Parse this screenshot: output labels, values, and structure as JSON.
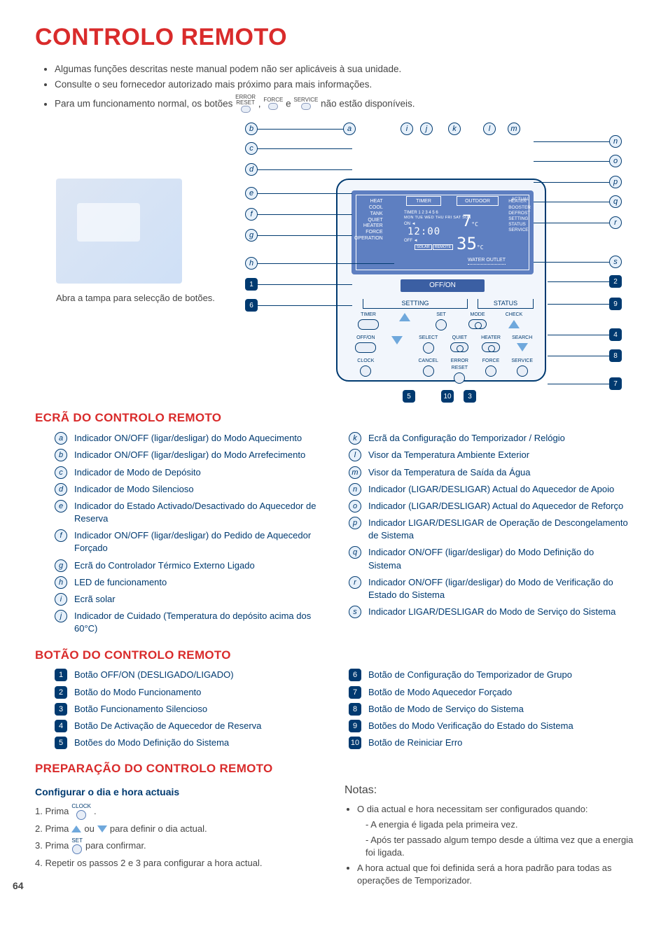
{
  "title": "CONTROLO REMOTO",
  "intro_lines": [
    "Algumas funções descritas neste manual podem não ser aplicáveis à sua unidade.",
    "Consulte o seu fornecedor autorizado mais próximo para mais informações."
  ],
  "intro_btn_line": {
    "prefix": "Para um funcionamento normal, os botões",
    "btn1_top": "ERROR",
    "btn1_bottom": "RESET",
    "btn2": "FORCE",
    "btn3": "SERVICE",
    "mid": "e",
    "suffix": "não estão disponíveis."
  },
  "photo_caption": "Abra a tampa para selecção de botões.",
  "lcd": {
    "left_labels": [
      "HEAT",
      "COOL",
      "TANK",
      "QUIET",
      "HEATER",
      "FORCE",
      "OPERATION"
    ],
    "right_labels": [
      "HEATER",
      "BOOSTER",
      "DEFROST",
      "SETTING",
      "STATUS",
      "SERVICE"
    ],
    "actual": "ACTUAL",
    "timer_box": "TIMER",
    "outdoor_box": "OUTDOOR",
    "timer_mini": "TIMER 1 2 3 4 5 6",
    "days": "MON TUE WED THU FRI SAT SUN",
    "on": "ON ◄",
    "clock": "12:00",
    "off": "OFF ◄",
    "solar": "SOLAR",
    "remote": "REMOTE",
    "temp_out": "7",
    "temp_out_unit": "°C",
    "temp_water": "35",
    "temp_water_unit": "°C",
    "water_outlet": "WATER OUTLET",
    "off_on": "OFF/ON"
  },
  "panel_labels": {
    "setting": "SETTING",
    "status": "STATUS"
  },
  "buttons_grid": [
    [
      {
        "label": "TIMER",
        "shape": "pill"
      },
      {
        "label": "",
        "shape": "tri-up"
      },
      {
        "label": "SET",
        "shape": "round"
      },
      {
        "label": "MODE",
        "shape": "eye"
      },
      {
        "label": "CHECK",
        "shape": "tri-up"
      }
    ],
    [
      {
        "label": "OFF/ON",
        "shape": "pill"
      },
      {
        "label": "",
        "shape": "tri-down"
      },
      {
        "label": "SELECT",
        "shape": "round"
      },
      {
        "label": "QUIET",
        "shape": "eye"
      },
      {
        "label": "HEATER",
        "shape": "eye"
      },
      {
        "label": "SEARCH",
        "shape": "tri-down"
      }
    ],
    [
      {
        "label": "CLOCK",
        "shape": "round"
      },
      {
        "label": "",
        "shape": "none"
      },
      {
        "label": "CANCEL",
        "shape": "round"
      },
      {
        "label": "ERROR RESET",
        "shape": "round"
      },
      {
        "label": "FORCE",
        "shape": "round"
      },
      {
        "label": "SERVICE",
        "shape": "round"
      }
    ]
  ],
  "callouts_letters_top": [
    "b",
    "a",
    "i",
    "j",
    "k",
    "l",
    "m"
  ],
  "callouts_letters_left": [
    "c",
    "d",
    "e",
    "f",
    "g",
    "h"
  ],
  "callouts_letters_right": [
    "n",
    "o",
    "p",
    "q",
    "r",
    "s"
  ],
  "callouts_nums_left": [
    "1",
    "6"
  ],
  "callouts_nums_right": [
    "2",
    "9",
    "4",
    "8",
    "7"
  ],
  "callouts_nums_bottom": [
    "5",
    "10",
    "3"
  ],
  "section_ecra": "ECRÃ DO CONTROLO REMOTO",
  "ecra_left": [
    {
      "k": "a",
      "t": "Indicador ON/OFF (ligar/desligar) do Modo Aquecimento"
    },
    {
      "k": "b",
      "t": "Indicador ON/OFF (ligar/desligar) do Modo Arrefecimento"
    },
    {
      "k": "c",
      "t": "Indicador de Modo de Depósito"
    },
    {
      "k": "d",
      "t": "Indicador de Modo Silencioso"
    },
    {
      "k": "e",
      "t": "Indicador do Estado Activado/Desactivado do Aquecedor de Reserva"
    },
    {
      "k": "f",
      "t": "Indicador ON/OFF (ligar/desligar) do Pedido de Aquecedor Forçado"
    },
    {
      "k": "g",
      "t": "Ecrã do Controlador Térmico Externo Ligado"
    },
    {
      "k": "h",
      "t": "LED de funcionamento"
    },
    {
      "k": "i",
      "t": "Ecrã solar"
    },
    {
      "k": "j",
      "t": "Indicador de Cuidado (Temperatura do depósito acima dos 60°C)"
    }
  ],
  "ecra_right": [
    {
      "k": "k",
      "t": "Ecrã da Configuração do Temporizador / Relógio"
    },
    {
      "k": "l",
      "t": "Visor da Temperatura Ambiente Exterior"
    },
    {
      "k": "m",
      "t": "Visor da Temperatura de Saída da Água"
    },
    {
      "k": "n",
      "t": "Indicador (LIGAR/DESLIGAR) Actual do Aquecedor de Apoio"
    },
    {
      "k": "o",
      "t": "Indicador (LIGAR/DESLIGAR) Actual do Aquecedor de Reforço"
    },
    {
      "k": "p",
      "t": "Indicador LIGAR/DESLIGAR de Operação de Descongelamento de Sistema"
    },
    {
      "k": "q",
      "t": "Indicador ON/OFF (ligar/desligar) do Modo Definição do Sistema"
    },
    {
      "k": "r",
      "t": "Indicador ON/OFF (ligar/desligar) do Modo de Verificação do Estado do Sistema"
    },
    {
      "k": "s",
      "t": "Indicador LIGAR/DESLIGAR do Modo de Serviço do Sistema"
    }
  ],
  "section_botao": "BOTÃO DO CONTROLO REMOTO",
  "botao_left": [
    {
      "k": "1",
      "t": "Botão OFF/ON (DESLIGADO/LIGADO)"
    },
    {
      "k": "2",
      "t": "Botão do Modo Funcionamento"
    },
    {
      "k": "3",
      "t": "Botão Funcionamento Silencioso"
    },
    {
      "k": "4",
      "t": "Botão De Activação de Aquecedor de Reserva"
    },
    {
      "k": "5",
      "t": "Botões do Modo Definição do Sistema"
    }
  ],
  "botao_right": [
    {
      "k": "6",
      "t": "Botão de Configuração do Temporizador de Grupo"
    },
    {
      "k": "7",
      "t": "Botão de Modo Aquecedor Forçado"
    },
    {
      "k": "8",
      "t": "Botão de Modo de Serviço do Sistema"
    },
    {
      "k": "9",
      "t": "Botões do Modo Verificação do Estado do Sistema"
    },
    {
      "k": "10",
      "t": "Botão de Reiniciar Erro"
    }
  ],
  "section_prep": "PREPARAÇÃO DO CONTROLO REMOTO",
  "prep_sub": "Configurar o dia e hora actuais",
  "steps": {
    "s1_pre": "1. Prima",
    "s1_btn": "CLOCK",
    "s1_post": ".",
    "s2_pre": "2. Prima",
    "s2_mid": "ou",
    "s2_post": "para definir o dia actual.",
    "s3_pre": "3. Prima",
    "s3_btn": "SET",
    "s3_post": "para confirmar.",
    "s4": "4. Repetir os passos 2 e 3 para configurar a hora actual."
  },
  "notes_title": "Notas:",
  "notes": [
    "O dia actual e hora necessitam ser configurados quando:",
    "- A energia é ligada pela primeira vez.",
    "- Após ter passado algum tempo desde a última vez que a energia foi ligada.",
    "A hora actual que foi definida será a hora padrão para todas as operações de Temporizador."
  ],
  "page_number": "64"
}
